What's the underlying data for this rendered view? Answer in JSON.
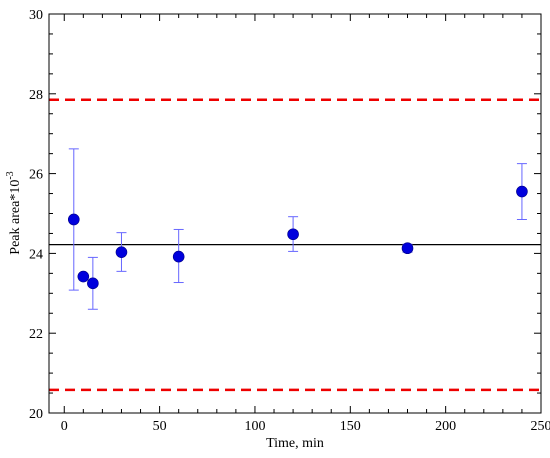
{
  "chart_data": {
    "type": "scatter",
    "xlabel": "Time, min",
    "ylabel_base": "Peak area*10",
    "ylabel_exponent": "-3",
    "xlim": [
      -8,
      250
    ],
    "ylim": [
      20,
      30
    ],
    "xticks": [
      0,
      50,
      100,
      150,
      200,
      250
    ],
    "yticks": [
      20,
      22,
      24,
      26,
      28,
      30
    ],
    "grid": false,
    "series": [
      {
        "color": "#0000dd",
        "error_color": "#6666ff",
        "points": [
          {
            "x": 5,
            "y": 24.85,
            "err_low": 23.08,
            "err_high": 26.62
          },
          {
            "x": 10,
            "y": 23.42,
            "err_low": 23.42,
            "err_high": 23.42
          },
          {
            "x": 15,
            "y": 23.25,
            "err_low": 22.6,
            "err_high": 23.9
          },
          {
            "x": 30,
            "y": 24.03,
            "err_low": 23.55,
            "err_high": 24.52
          },
          {
            "x": 60,
            "y": 23.92,
            "err_low": 23.27,
            "err_high": 24.6
          },
          {
            "x": 120,
            "y": 24.48,
            "err_low": 24.05,
            "err_high": 24.92
          },
          {
            "x": 180,
            "y": 24.13,
            "err_low": 24.03,
            "err_high": 24.23
          },
          {
            "x": 240,
            "y": 25.55,
            "err_low": 24.85,
            "err_high": 26.25
          }
        ]
      }
    ],
    "reference_lines": [
      {
        "y": 24.22,
        "color": "#000000",
        "style": "solid"
      },
      {
        "y": 27.85,
        "color": "#ee0000",
        "style": "dashed"
      },
      {
        "y": 20.58,
        "color": "#ee0000",
        "style": "dashed"
      }
    ]
  }
}
